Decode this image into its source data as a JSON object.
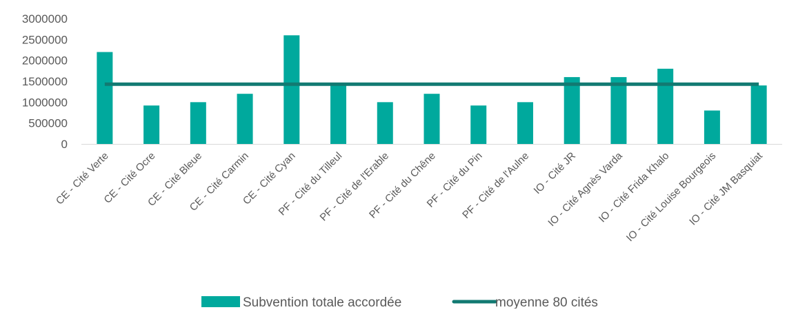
{
  "chart_data": {
    "type": "bar",
    "title": "",
    "xlabel": "",
    "ylabel": "",
    "ylim": [
      0,
      3000000
    ],
    "yticks": [
      0,
      500000,
      1000000,
      1500000,
      2000000,
      2500000,
      3000000
    ],
    "grid": false,
    "legend_position": "bottom",
    "categories": [
      "CE - Cité Verte",
      "CE - Cité Ocre",
      "CE - Cité Bleue",
      "CE - Cité Carmin",
      "CE - Cité Cyan",
      "PF - Cité du Tilleul",
      "PF - Cité de l'Erable",
      "PF - Cité du Chêne",
      "PF - Cité du Pin",
      "PF - Cité de l'Aulne",
      "IO - Cité JR",
      "IO - Cité Agnès Varda",
      "IO - Cité Frida Khalo",
      "IO - Cité Louise Bourgeois",
      "IO - Cité JM Basquiat"
    ],
    "series": [
      {
        "name": "Subvention totale accordée",
        "type": "bar",
        "color": "#00A99D",
        "values": [
          2200000,
          920000,
          1000000,
          1200000,
          2600000,
          1450000,
          1000000,
          1200000,
          920000,
          1000000,
          1600000,
          1600000,
          1800000,
          800000,
          1400000
        ]
      },
      {
        "name": "moyenne 80 cités",
        "type": "line",
        "color": "#127A72",
        "values": [
          1430000,
          1430000,
          1430000,
          1430000,
          1430000,
          1430000,
          1430000,
          1430000,
          1430000,
          1430000,
          1430000,
          1430000,
          1430000,
          1430000,
          1430000
        ]
      }
    ]
  }
}
